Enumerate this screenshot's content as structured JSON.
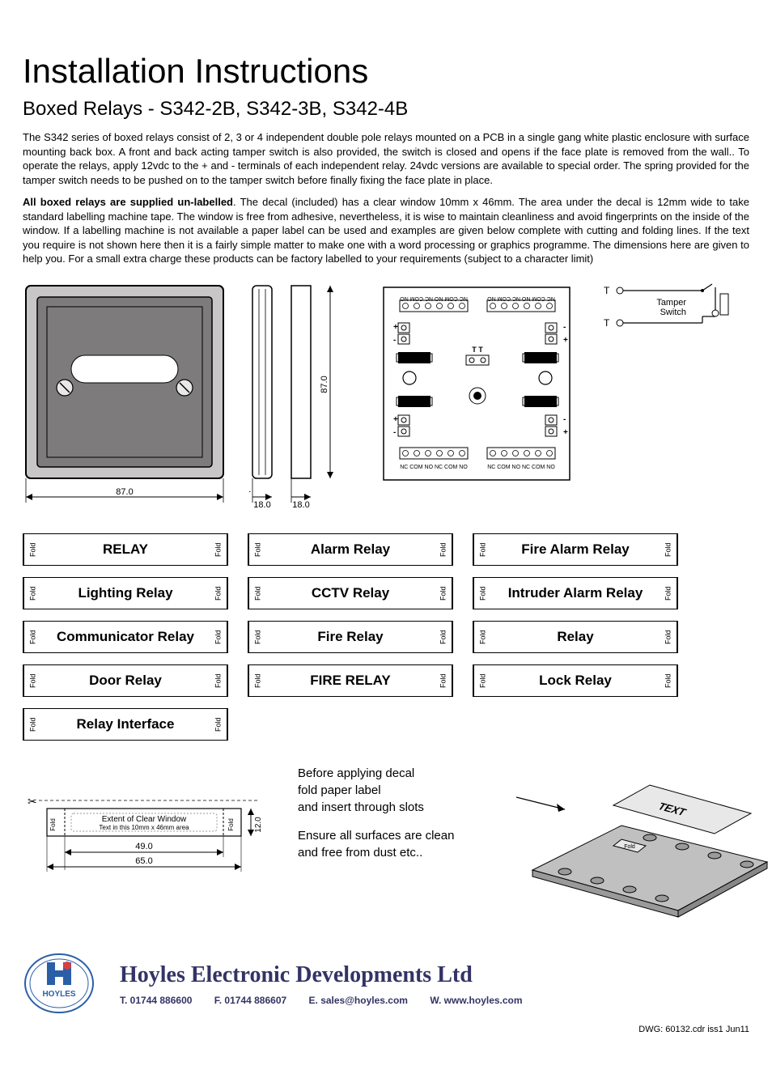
{
  "title": "Installation Instructions",
  "subtitle": "Boxed Relays - S342-2B, S342-3B, S342-4B",
  "para1": "The S342 series of boxed relays  consist of 2, 3 or 4 independent double pole relays mounted on a PCB in a single gang white plastic enclosure with surface mounting back box. A front and back acting tamper switch is also provided, the switch is closed and opens if the face plate is removed from the wall.. To operate the relays, apply 12vdc to the + and - terminals of each independent relay. 24vdc versions are available to special order. The spring provided for the tamper switch needs to be pushed on to the tamper switch before finally fixing the face plate in place.",
  "para2_bold": "All boxed relays are supplied un-labelled",
  "para2_rest": ". The decal (included) has a clear window 10mm x 46mm. The  area under the decal is 12mm wide to take standard labelling machine tape. The window is free from adhesive, nevertheless, it is wise to maintain cleanliness and avoid fingerprints on the inside of the window. If a labelling machine is not available a paper label can be used and examples are given below complete with cutting and folding lines. If the text you require is not shown here then it is a fairly simple matter to make one with a word processing or graphics programme. The dimensions here are given to help you. For a small extra charge these products can be factory labelled to your requirements (subject  to a character limit)",
  "dimensions": {
    "faceplate_size": "87.0",
    "backbox_width": "18.0",
    "label_width": "49.0",
    "label_total_width": "65.0",
    "label_height": "12.0",
    "pcb_height_label": "87.0"
  },
  "pcb": {
    "terminal_label_top": "NC COM NO  NC COM NO",
    "terminal_label_bottom": "NC COM NO  NC COM NO",
    "plus": "+",
    "minus": "-",
    "t_label": "T   T",
    "tamper_label": "Tamper\nSwitch",
    "t_letter": "T"
  },
  "fold": "Fold",
  "label_text_icon": "TEXT",
  "labels": {
    "col1": [
      "RELAY",
      "Lighting Relay",
      "Communicator Relay",
      "Door Relay",
      "Relay Interface"
    ],
    "col2": [
      "Alarm Relay",
      "CCTV Relay",
      "Fire Relay",
      "FIRE RELAY"
    ],
    "col3": [
      "Fire Alarm Relay",
      "Intruder Alarm Relay",
      "Relay",
      "Lock Relay"
    ]
  },
  "note1": "Before applying decal\nfold paper label\nand insert through slots",
  "note2": "Ensure all surfaces are clean\nand free from dust etc..",
  "window_label1": "Extent of Clear Window",
  "window_label2": "Text in this 10mm x 46mm area",
  "company": "Hoyles Electronic Developments Ltd",
  "contact": {
    "tel": "T. 01744 886600",
    "fax": "F. 01744 886607",
    "email": "E. sales@hoyles.com",
    "web": "W. www.hoyles.com"
  },
  "logo_text": "HOYLES",
  "dwg": "DWG: 60132.cdr iss1 Jun11",
  "colors": {
    "faceplate_stroke": "#000000",
    "faceplate_fill": "#c8c6c6",
    "faceplate_inner": "#7d7b7b",
    "window_fill": "#ffffff",
    "screw_fill": "#e8e8e8",
    "pcb_stroke": "#000000",
    "dim_arrow": "#000000",
    "footer_text": "#333366",
    "logo_blue": "#2a5fa8",
    "logo_red": "#d84040",
    "perspective_top": "#9a9a9a",
    "perspective_mid": "#c0c0c0",
    "perspective_light": "#e8e8e8"
  }
}
